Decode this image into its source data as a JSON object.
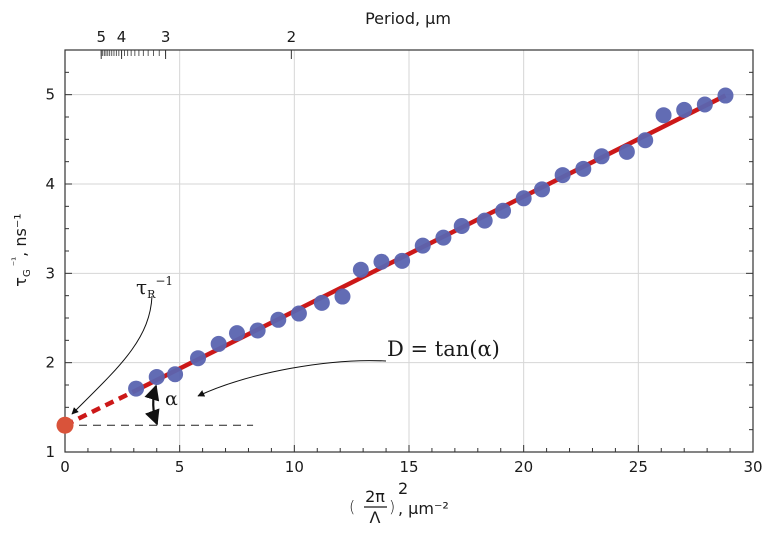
{
  "chart_data": {
    "type": "scatter",
    "xlabel": "(2π/Λ)², μm⁻²",
    "xlabel_parts": {
      "numer": "2π",
      "denom": "Λ",
      "exp": "2",
      "unit": ", μm⁻²"
    },
    "ylabel": "τG⁻¹, ns⁻¹",
    "ylabel_parts": {
      "base": "τ",
      "sub": "G",
      "sup": " ⁻¹",
      "unit": ", ns⁻¹"
    },
    "xlim": [
      0,
      30
    ],
    "ylim": [
      1,
      5.5
    ],
    "x_ticks": [
      0,
      5,
      10,
      15,
      20,
      25,
      30
    ],
    "y_ticks": [
      1,
      2,
      3,
      4,
      5
    ],
    "top_axis": {
      "title": "Period, μm",
      "labels": [
        {
          "text": "5",
          "period": 5
        },
        {
          "text": "4",
          "period": 4
        },
        {
          "text": "3",
          "period": 3
        },
        {
          "text": "2",
          "period": 2
        }
      ],
      "minor_periods": [
        5,
        4.9,
        4.8,
        4.7,
        4.6,
        4.5,
        4.4,
        4.3,
        4.2,
        4.1,
        4.0,
        3.9,
        3.8,
        3.7,
        3.6,
        3.5,
        3.4,
        3.3,
        3.2,
        3.1,
        3.0
      ]
    },
    "series": [
      {
        "values": [
          [
            3.1,
            1.71
          ],
          [
            4.0,
            1.84
          ],
          [
            4.8,
            1.87
          ],
          [
            5.8,
            2.05
          ],
          [
            6.7,
            2.21
          ],
          [
            7.5,
            2.33
          ],
          [
            8.4,
            2.36
          ],
          [
            9.3,
            2.48
          ],
          [
            10.2,
            2.55
          ],
          [
            11.2,
            2.67
          ],
          [
            12.1,
            2.74
          ],
          [
            12.9,
            3.04
          ],
          [
            13.8,
            3.13
          ],
          [
            14.7,
            3.14
          ],
          [
            15.6,
            3.31
          ],
          [
            16.5,
            3.4
          ],
          [
            17.3,
            3.53
          ],
          [
            18.3,
            3.59
          ],
          [
            19.1,
            3.7
          ],
          [
            20.0,
            3.84
          ],
          [
            20.8,
            3.94
          ],
          [
            21.7,
            4.1
          ],
          [
            22.6,
            4.17
          ],
          [
            23.4,
            4.31
          ],
          [
            24.5,
            4.36
          ],
          [
            25.3,
            4.49
          ],
          [
            26.1,
            4.77
          ],
          [
            27.0,
            4.83
          ],
          [
            27.9,
            4.89
          ],
          [
            28.8,
            4.99
          ]
        ],
        "color": "#5a64b0"
      }
    ],
    "fit_line": {
      "x_start": 3.1,
      "x_end": 28.8,
      "y_start": 1.69,
      "y_end": 4.99,
      "color": "#cc1818"
    },
    "extrapolation": {
      "x_start": 0,
      "x_end": 3.1,
      "y_start": 1.3,
      "y_end": 1.69,
      "color": "#cc1818"
    },
    "intercept_point": {
      "x": 0,
      "y": 1.3,
      "color": "#d9533a"
    },
    "baseline": {
      "x_start": 0,
      "x_end": 8.2,
      "y": 1.3
    },
    "annotations": {
      "intercept_label": {
        "base": "τ",
        "sub": "R",
        "sup": "−1"
      },
      "slope_label": "D = tan(α)",
      "angle_label": "α"
    },
    "grid": true
  }
}
